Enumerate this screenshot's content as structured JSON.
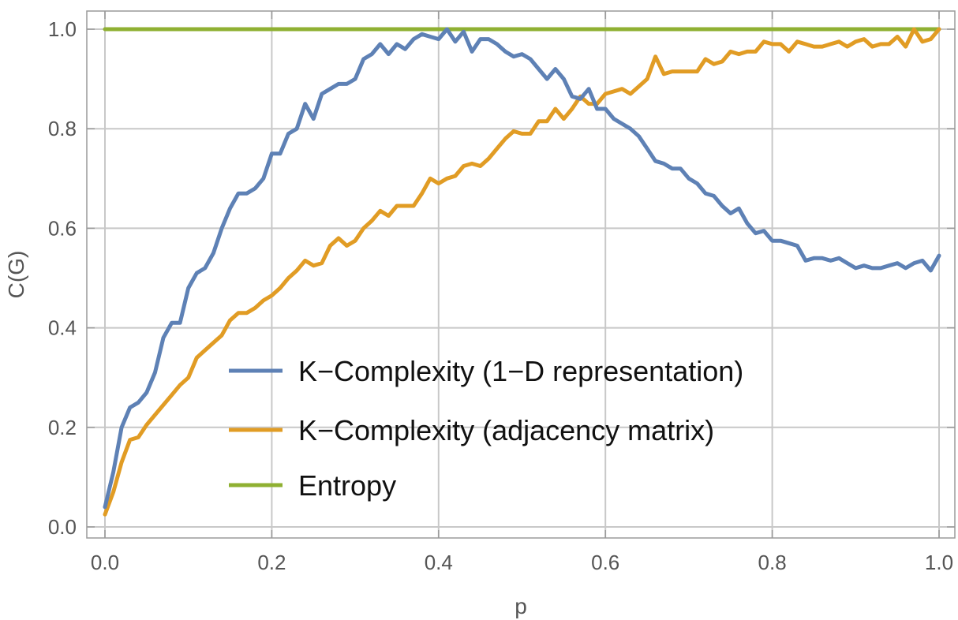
{
  "chart_data": {
    "type": "line",
    "title": "",
    "xlabel": "p",
    "ylabel": "C(G)",
    "xlim": [
      0,
      1
    ],
    "ylim": [
      0,
      1
    ],
    "xticks": [
      "0.0",
      "0.2",
      "0.4",
      "0.6",
      "0.8",
      "1.0"
    ],
    "yticks": [
      "0.0",
      "0.2",
      "0.4",
      "0.6",
      "0.8",
      "1.0"
    ],
    "grid": true,
    "legend_position": "bottom-center",
    "x": [
      0.0,
      0.01,
      0.02,
      0.03,
      0.04,
      0.05,
      0.06,
      0.07,
      0.08,
      0.09,
      0.1,
      0.11,
      0.12,
      0.13,
      0.14,
      0.15,
      0.16,
      0.17,
      0.18,
      0.19,
      0.2,
      0.21,
      0.22,
      0.23,
      0.24,
      0.25,
      0.26,
      0.27,
      0.28,
      0.29,
      0.3,
      0.31,
      0.32,
      0.33,
      0.34,
      0.35,
      0.36,
      0.37,
      0.38,
      0.39,
      0.4,
      0.41,
      0.42,
      0.43,
      0.44,
      0.45,
      0.46,
      0.47,
      0.48,
      0.49,
      0.5,
      0.51,
      0.52,
      0.53,
      0.54,
      0.55,
      0.56,
      0.57,
      0.58,
      0.59,
      0.6,
      0.61,
      0.62,
      0.63,
      0.64,
      0.65,
      0.66,
      0.67,
      0.68,
      0.69,
      0.7,
      0.71,
      0.72,
      0.73,
      0.74,
      0.75,
      0.76,
      0.77,
      0.78,
      0.79,
      0.8,
      0.81,
      0.82,
      0.83,
      0.84,
      0.85,
      0.86,
      0.87,
      0.88,
      0.89,
      0.9,
      0.91,
      0.92,
      0.93,
      0.94,
      0.95,
      0.96,
      0.97,
      0.98,
      0.99,
      1.0
    ],
    "series": [
      {
        "name": "K−Complexity (1−D representation)",
        "color": "#5e81b5",
        "values": [
          0.04,
          0.11,
          0.2,
          0.24,
          0.25,
          0.27,
          0.31,
          0.38,
          0.41,
          0.41,
          0.48,
          0.51,
          0.52,
          0.55,
          0.6,
          0.64,
          0.67,
          0.67,
          0.68,
          0.7,
          0.75,
          0.75,
          0.79,
          0.8,
          0.85,
          0.82,
          0.87,
          0.88,
          0.89,
          0.89,
          0.9,
          0.94,
          0.95,
          0.97,
          0.95,
          0.97,
          0.96,
          0.98,
          0.99,
          0.985,
          0.98,
          1.0,
          0.975,
          0.995,
          0.955,
          0.98,
          0.98,
          0.97,
          0.955,
          0.945,
          0.95,
          0.94,
          0.92,
          0.9,
          0.92,
          0.9,
          0.865,
          0.86,
          0.88,
          0.84,
          0.84,
          0.82,
          0.81,
          0.8,
          0.785,
          0.76,
          0.735,
          0.73,
          0.72,
          0.72,
          0.7,
          0.69,
          0.67,
          0.665,
          0.645,
          0.63,
          0.64,
          0.61,
          0.59,
          0.595,
          0.575,
          0.575,
          0.57,
          0.565,
          0.535,
          0.54,
          0.54,
          0.535,
          0.54,
          0.53,
          0.52,
          0.525,
          0.52,
          0.52,
          0.525,
          0.53,
          0.52,
          0.53,
          0.535,
          0.515,
          0.545
        ]
      },
      {
        "name": "K−Complexity (adjacency matrix)",
        "color": "#e19c24",
        "values": [
          0.025,
          0.07,
          0.13,
          0.175,
          0.18,
          0.205,
          0.225,
          0.245,
          0.265,
          0.285,
          0.3,
          0.34,
          0.355,
          0.37,
          0.385,
          0.415,
          0.43,
          0.43,
          0.44,
          0.455,
          0.465,
          0.48,
          0.5,
          0.515,
          0.535,
          0.525,
          0.53,
          0.565,
          0.58,
          0.565,
          0.575,
          0.6,
          0.615,
          0.635,
          0.625,
          0.645,
          0.645,
          0.645,
          0.67,
          0.7,
          0.69,
          0.7,
          0.705,
          0.725,
          0.73,
          0.725,
          0.74,
          0.76,
          0.78,
          0.795,
          0.79,
          0.79,
          0.815,
          0.815,
          0.84,
          0.82,
          0.84,
          0.865,
          0.85,
          0.85,
          0.87,
          0.875,
          0.88,
          0.87,
          0.885,
          0.9,
          0.945,
          0.91,
          0.915,
          0.915,
          0.915,
          0.915,
          0.94,
          0.93,
          0.935,
          0.955,
          0.95,
          0.955,
          0.955,
          0.975,
          0.97,
          0.97,
          0.955,
          0.975,
          0.97,
          0.965,
          0.965,
          0.97,
          0.975,
          0.965,
          0.975,
          0.98,
          0.965,
          0.97,
          0.97,
          0.985,
          0.965,
          1.0,
          0.975,
          0.98,
          1.0
        ]
      },
      {
        "name": "Entropy",
        "color": "#8fb032",
        "values": [
          1,
          1,
          1,
          1,
          1,
          1,
          1,
          1,
          1,
          1,
          1,
          1,
          1,
          1,
          1,
          1,
          1,
          1,
          1,
          1,
          1,
          1,
          1,
          1,
          1,
          1,
          1,
          1,
          1,
          1,
          1,
          1,
          1,
          1,
          1,
          1,
          1,
          1,
          1,
          1,
          1,
          1,
          1,
          1,
          1,
          1,
          1,
          1,
          1,
          1,
          1,
          1,
          1,
          1,
          1,
          1,
          1,
          1,
          1,
          1,
          1,
          1,
          1,
          1,
          1,
          1,
          1,
          1,
          1,
          1,
          1,
          1,
          1,
          1,
          1,
          1,
          1,
          1,
          1,
          1,
          1,
          1,
          1,
          1,
          1,
          1,
          1,
          1,
          1,
          1,
          1,
          1,
          1,
          1,
          1,
          1,
          1,
          1,
          1,
          1,
          1
        ]
      }
    ]
  }
}
